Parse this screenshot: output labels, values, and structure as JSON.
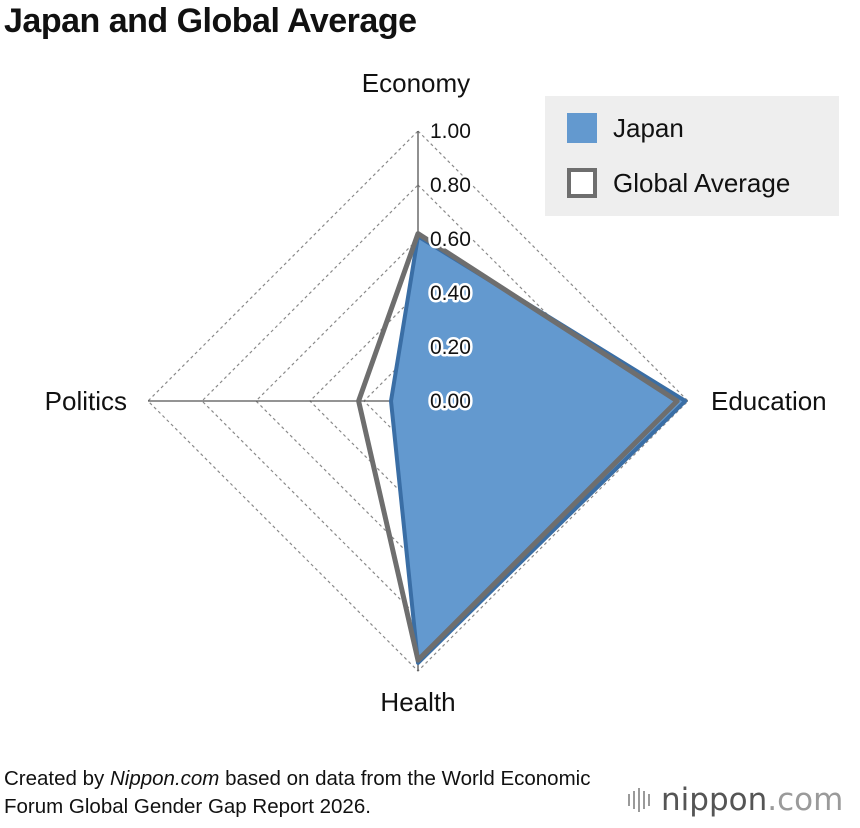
{
  "page": {
    "title": "Japan and Global Average",
    "source_prefix": "Created by ",
    "source_site": "Nippon.com",
    "source_suffix": " based on data from the World Economic Forum Global Gender Gap Report 2026.",
    "brand_main": "nippon",
    "brand_tld": ".com"
  },
  "chart_data": {
    "type": "radar",
    "title": "Japan and Global Average",
    "axes": [
      "Economy",
      "Education",
      "Health",
      "Politics"
    ],
    "ticks": [
      "1.00",
      "0.80",
      "0.60",
      "0.40",
      "0.20",
      "0.00"
    ],
    "range": [
      0,
      1
    ],
    "grid": true,
    "legend_position": "top-right",
    "series": [
      {
        "name": "Japan",
        "values": [
          0.61,
          0.99,
          0.97,
          0.1
        ],
        "style": "filled",
        "fill": "#6399cf",
        "stroke": "#3a6ea5"
      },
      {
        "name": "Global Average",
        "values": [
          0.62,
          0.96,
          0.96,
          0.22
        ],
        "style": "outline",
        "stroke": "#6e6e6e"
      }
    ]
  }
}
